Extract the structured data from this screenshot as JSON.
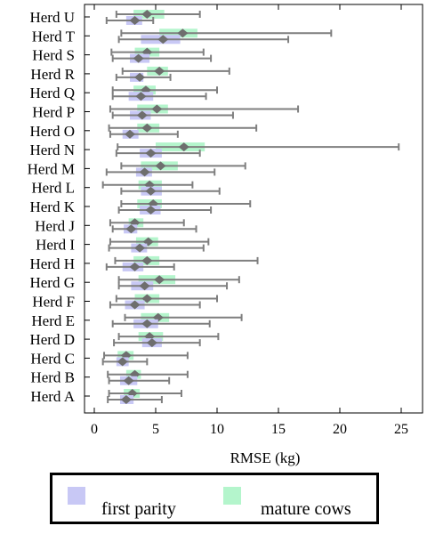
{
  "chart_data": {
    "type": "boxplot",
    "xlabel": "RMSE (kg)",
    "xlim": [
      -3,
      26
    ],
    "xticks": [
      0,
      5,
      10,
      15,
      20,
      25
    ],
    "categories": [
      "Herd U",
      "Herd T",
      "Herd S",
      "Herd R",
      "Herd Q",
      "Herd P",
      "Herd O",
      "Herd N",
      "Herd M",
      "Herd L",
      "Herd K",
      "Herd J",
      "Herd I",
      "Herd H",
      "Herd G",
      "Herd F",
      "Herd E",
      "Herd D",
      "Herd C",
      "Herd B",
      "Herd A"
    ],
    "colors": {
      "first_parity": "#c8c8f5",
      "mature_cows": "#b4f5cc",
      "whisker": "#7f7f7f",
      "diamond": "#6e6e6e"
    },
    "series": [
      {
        "name": "first parity",
        "rows": [
          {
            "min": 1.0,
            "q1": 2.6,
            "mean": 3.3,
            "q3": 3.9,
            "max": 4.8
          },
          {
            "min": 2.0,
            "q1": 3.8,
            "mean": 5.6,
            "q3": 7.0,
            "max": 15.8
          },
          {
            "min": 1.5,
            "q1": 2.9,
            "mean": 3.6,
            "q3": 4.5,
            "max": 9.5
          },
          {
            "min": 1.8,
            "q1": 2.9,
            "mean": 3.7,
            "q3": 4.0,
            "max": 6.2
          },
          {
            "min": 1.5,
            "q1": 2.8,
            "mean": 3.8,
            "q3": 4.8,
            "max": 9.1
          },
          {
            "min": 1.5,
            "q1": 2.9,
            "mean": 3.9,
            "q3": 4.6,
            "max": 11.3
          },
          {
            "min": 1.3,
            "q1": 2.3,
            "mean": 2.9,
            "q3": 3.6,
            "max": 6.8
          },
          {
            "min": 1.8,
            "q1": 3.7,
            "mean": 4.6,
            "q3": 5.5,
            "max": 8.6
          },
          {
            "min": 1.0,
            "q1": 3.4,
            "mean": 4.1,
            "q3": 4.7,
            "max": 9.8
          },
          {
            "min": 2.2,
            "q1": 3.8,
            "mean": 4.6,
            "q3": 5.5,
            "max": 10.2
          },
          {
            "min": 2.0,
            "q1": 3.7,
            "mean": 4.6,
            "q3": 5.4,
            "max": 9.5
          },
          {
            "min": 1.5,
            "q1": 2.4,
            "mean": 3.0,
            "q3": 3.5,
            "max": 8.3
          },
          {
            "min": 1.2,
            "q1": 3.0,
            "mean": 3.7,
            "q3": 4.3,
            "max": 8.9
          },
          {
            "min": 1.0,
            "q1": 2.3,
            "mean": 3.3,
            "q3": 4.0,
            "max": 6.5
          },
          {
            "min": 2.0,
            "q1": 3.0,
            "mean": 4.1,
            "q3": 4.8,
            "max": 10.8
          },
          {
            "min": 1.3,
            "q1": 2.5,
            "mean": 3.3,
            "q3": 4.1,
            "max": 8.6
          },
          {
            "min": 1.5,
            "q1": 3.2,
            "mean": 4.3,
            "q3": 5.2,
            "max": 9.4
          },
          {
            "min": 1.6,
            "q1": 3.9,
            "mean": 4.7,
            "q3": 5.5,
            "max": 8.6
          },
          {
            "min": 0.7,
            "q1": 1.8,
            "mean": 2.3,
            "q3": 2.8,
            "max": 4.3
          },
          {
            "min": 1.2,
            "q1": 2.1,
            "mean": 2.8,
            "q3": 3.5,
            "max": 6.1
          },
          {
            "min": 1.1,
            "q1": 2.1,
            "mean": 2.6,
            "q3": 3.2,
            "max": 5.5
          }
        ]
      },
      {
        "name": "mature cows",
        "rows": [
          {
            "min": 1.8,
            "q1": 3.2,
            "mean": 4.3,
            "q3": 5.7,
            "max": 8.6
          },
          {
            "min": 2.2,
            "q1": 5.3,
            "mean": 7.2,
            "q3": 8.4,
            "max": 19.3
          },
          {
            "min": 1.4,
            "q1": 3.3,
            "mean": 4.3,
            "q3": 5.3,
            "max": 8.9
          },
          {
            "min": 2.3,
            "q1": 4.3,
            "mean": 5.3,
            "q3": 6.0,
            "max": 11.0
          },
          {
            "min": 1.5,
            "q1": 3.2,
            "mean": 4.2,
            "q3": 5.0,
            "max": 10.0
          },
          {
            "min": 1.3,
            "q1": 3.5,
            "mean": 5.1,
            "q3": 6.0,
            "max": 16.6
          },
          {
            "min": 1.2,
            "q1": 3.5,
            "mean": 4.3,
            "q3": 5.3,
            "max": 13.2
          },
          {
            "min": 1.9,
            "q1": 5.0,
            "mean": 7.3,
            "q3": 9.0,
            "max": 24.8
          },
          {
            "min": 2.2,
            "q1": 3.8,
            "mean": 5.4,
            "q3": 6.8,
            "max": 12.3
          },
          {
            "min": 0.7,
            "q1": 3.6,
            "mean": 4.5,
            "q3": 5.5,
            "max": 8.0
          },
          {
            "min": 2.2,
            "q1": 3.5,
            "mean": 4.8,
            "q3": 5.5,
            "max": 12.7
          },
          {
            "min": 1.3,
            "q1": 2.8,
            "mean": 3.3,
            "q3": 4.0,
            "max": 7.3
          },
          {
            "min": 1.3,
            "q1": 3.4,
            "mean": 4.4,
            "q3": 5.2,
            "max": 9.3
          },
          {
            "min": 1.7,
            "q1": 3.2,
            "mean": 4.3,
            "q3": 5.3,
            "max": 13.3
          },
          {
            "min": 2.0,
            "q1": 3.6,
            "mean": 5.3,
            "q3": 6.6,
            "max": 11.8
          },
          {
            "min": 1.8,
            "q1": 3.3,
            "mean": 4.3,
            "q3": 5.3,
            "max": 10.0
          },
          {
            "min": 2.5,
            "q1": 3.8,
            "mean": 5.2,
            "q3": 6.1,
            "max": 12.0
          },
          {
            "min": 2.0,
            "q1": 3.6,
            "mean": 4.5,
            "q3": 5.6,
            "max": 10.1
          },
          {
            "min": 0.8,
            "q1": 1.9,
            "mean": 2.6,
            "q3": 3.2,
            "max": 7.6
          },
          {
            "min": 1.1,
            "q1": 2.6,
            "mean": 3.3,
            "q3": 3.8,
            "max": 7.6
          },
          {
            "min": 1.2,
            "q1": 2.4,
            "mean": 3.1,
            "q3": 3.7,
            "max": 7.1
          }
        ]
      }
    ]
  },
  "legend": {
    "first_parity_label": "first parity",
    "mature_cows_label": "mature cows"
  }
}
